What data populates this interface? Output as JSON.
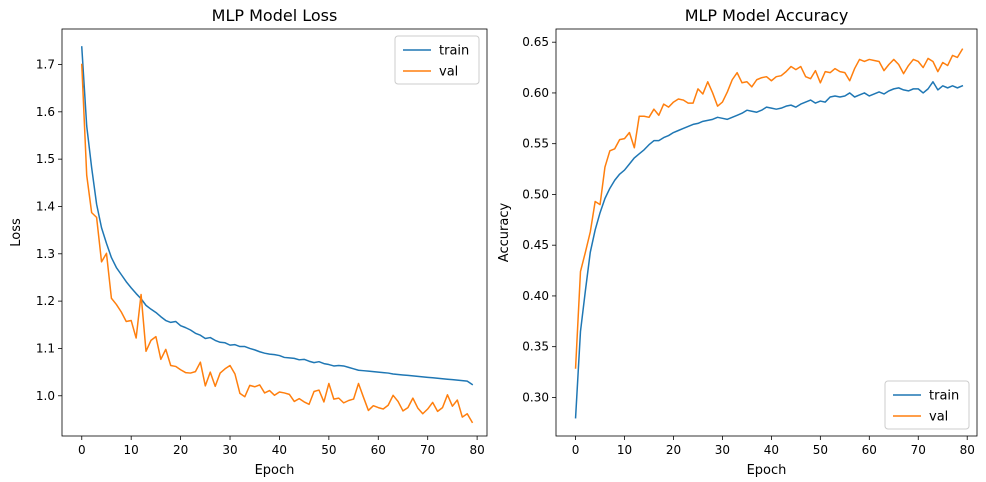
{
  "chart_data": [
    {
      "type": "line",
      "title": "MLP Model Loss",
      "xlabel": "Epoch",
      "ylabel": "Loss",
      "xlim": [
        -4,
        82
      ],
      "ylim": [
        0.915,
        1.775
      ],
      "xticks": [
        "0",
        "10",
        "20",
        "30",
        "40",
        "50",
        "60",
        "70",
        "80"
      ],
      "yticks": [
        "1.0",
        "1.1",
        "1.2",
        "1.3",
        "1.4",
        "1.5",
        "1.6",
        "1.7"
      ],
      "grid": false,
      "legend_position": "top-right",
      "colors": {
        "train": "#1f77b4",
        "val": "#ff7f0e"
      },
      "series": [
        {
          "name": "train",
          "values": [
            1.737,
            1.57,
            1.482,
            1.405,
            1.355,
            1.322,
            1.292,
            1.271,
            1.256,
            1.241,
            1.228,
            1.216,
            1.205,
            1.191,
            1.183,
            1.176,
            1.167,
            1.159,
            1.155,
            1.157,
            1.148,
            1.144,
            1.139,
            1.132,
            1.128,
            1.121,
            1.123,
            1.117,
            1.113,
            1.112,
            1.107,
            1.108,
            1.104,
            1.104,
            1.1,
            1.097,
            1.093,
            1.09,
            1.088,
            1.087,
            1.085,
            1.081,
            1.08,
            1.079,
            1.076,
            1.077,
            1.073,
            1.07,
            1.072,
            1.068,
            1.066,
            1.063,
            1.064,
            1.063,
            1.06,
            1.057,
            1.054,
            1.053,
            1.052,
            1.051,
            1.05,
            1.049,
            1.048,
            1.046,
            1.045,
            1.044,
            1.043,
            1.042,
            1.041,
            1.04,
            1.039,
            1.038,
            1.037,
            1.036,
            1.035,
            1.034,
            1.033,
            1.032,
            1.031,
            1.024
          ]
        },
        {
          "name": "val",
          "values": [
            1.7,
            1.466,
            1.387,
            1.377,
            1.283,
            1.301,
            1.206,
            1.193,
            1.177,
            1.157,
            1.159,
            1.122,
            1.214,
            1.094,
            1.117,
            1.125,
            1.077,
            1.098,
            1.064,
            1.062,
            1.055,
            1.049,
            1.048,
            1.051,
            1.071,
            1.021,
            1.05,
            1.02,
            1.048,
            1.057,
            1.064,
            1.046,
            1.005,
            0.998,
            1.022,
            1.019,
            1.023,
            1.006,
            1.011,
            1.001,
            1.008,
            1.006,
            1.003,
            0.988,
            0.994,
            0.987,
            0.982,
            1.009,
            1.012,
            0.987,
            1.026,
            0.993,
            0.995,
            0.985,
            0.99,
            0.993,
            1.026,
            0.997,
            0.969,
            0.979,
            0.975,
            0.972,
            0.98,
            1.001,
            0.988,
            0.968,
            0.975,
            0.995,
            0.974,
            0.962,
            0.972,
            0.986,
            0.967,
            0.975,
            1.002,
            0.978,
            0.991,
            0.955,
            0.962,
            0.944
          ]
        }
      ]
    },
    {
      "type": "line",
      "title": "MLP Model Accuracy",
      "xlabel": "Epoch",
      "ylabel": "Accuracy",
      "xlim": [
        -4,
        82
      ],
      "ylim": [
        0.262,
        0.663
      ],
      "xticks": [
        "0",
        "10",
        "20",
        "30",
        "40",
        "50",
        "60",
        "70",
        "80"
      ],
      "yticks": [
        "0.30",
        "0.35",
        "0.40",
        "0.45",
        "0.50",
        "0.55",
        "0.60",
        "0.65"
      ],
      "grid": false,
      "legend_position": "bottom-right",
      "colors": {
        "train": "#1f77b4",
        "val": "#ff7f0e"
      },
      "series": [
        {
          "name": "train",
          "values": [
            0.28,
            0.365,
            0.405,
            0.443,
            0.465,
            0.482,
            0.496,
            0.506,
            0.514,
            0.52,
            0.524,
            0.53,
            0.536,
            0.54,
            0.544,
            0.549,
            0.553,
            0.553,
            0.556,
            0.558,
            0.561,
            0.563,
            0.565,
            0.567,
            0.569,
            0.57,
            0.572,
            0.573,
            0.574,
            0.576,
            0.575,
            0.574,
            0.576,
            0.578,
            0.58,
            0.583,
            0.582,
            0.581,
            0.583,
            0.586,
            0.585,
            0.584,
            0.585,
            0.587,
            0.588,
            0.586,
            0.589,
            0.591,
            0.593,
            0.59,
            0.592,
            0.591,
            0.596,
            0.597,
            0.596,
            0.597,
            0.6,
            0.596,
            0.598,
            0.6,
            0.597,
            0.599,
            0.601,
            0.599,
            0.602,
            0.604,
            0.605,
            0.603,
            0.602,
            0.604,
            0.604,
            0.6,
            0.604,
            0.611,
            0.603,
            0.607,
            0.605,
            0.607,
            0.605,
            0.607
          ]
        },
        {
          "name": "val",
          "values": [
            0.329,
            0.424,
            0.443,
            0.463,
            0.493,
            0.49,
            0.527,
            0.543,
            0.545,
            0.554,
            0.555,
            0.561,
            0.546,
            0.577,
            0.577,
            0.576,
            0.584,
            0.578,
            0.589,
            0.586,
            0.591,
            0.594,
            0.593,
            0.59,
            0.59,
            0.604,
            0.599,
            0.611,
            0.6,
            0.587,
            0.591,
            0.601,
            0.613,
            0.62,
            0.61,
            0.611,
            0.606,
            0.613,
            0.615,
            0.616,
            0.612,
            0.616,
            0.617,
            0.621,
            0.626,
            0.623,
            0.626,
            0.616,
            0.614,
            0.622,
            0.61,
            0.621,
            0.62,
            0.624,
            0.621,
            0.62,
            0.612,
            0.624,
            0.633,
            0.631,
            0.633,
            0.632,
            0.631,
            0.622,
            0.628,
            0.633,
            0.628,
            0.619,
            0.627,
            0.633,
            0.631,
            0.625,
            0.634,
            0.631,
            0.621,
            0.63,
            0.627,
            0.637,
            0.635,
            0.643
          ]
        }
      ]
    }
  ]
}
